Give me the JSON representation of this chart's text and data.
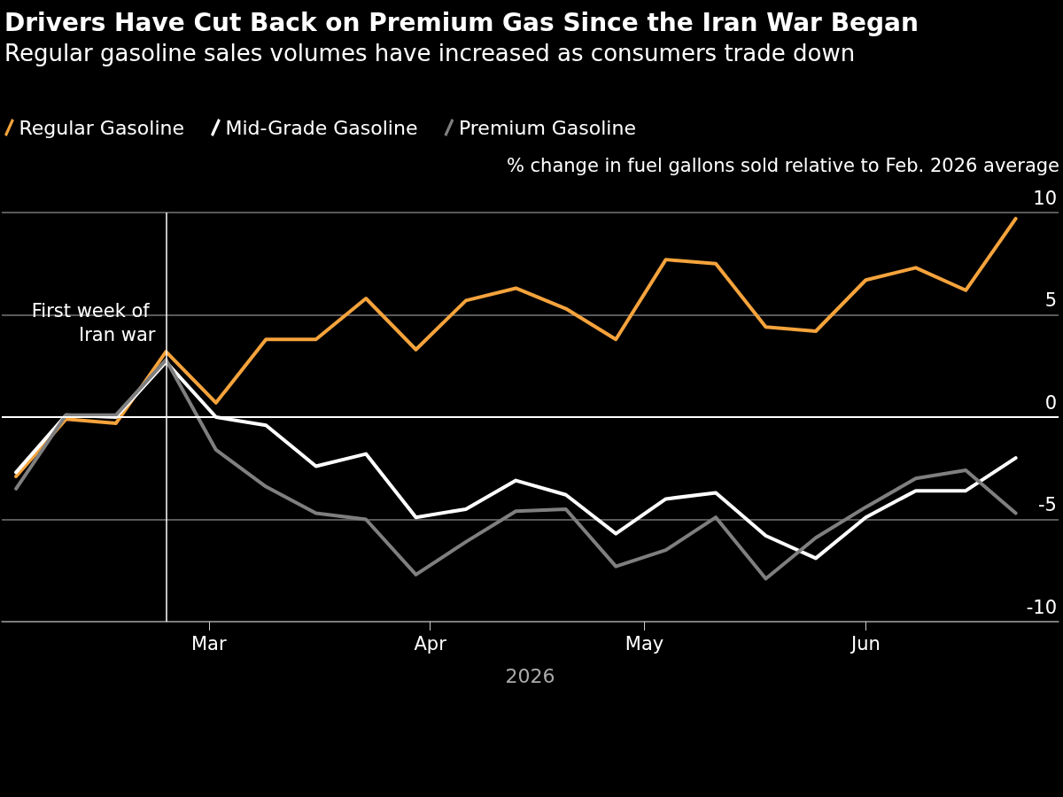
{
  "chart_data": {
    "type": "line",
    "title": "Drivers Have Cut Back on Premium Gas Since the Iran War Began",
    "subtitle": "Regular gasoline sales volumes have increased as consumers trade down",
    "ylabel": "% change in fuel gallons sold relative to Feb. 2026 average",
    "xlabel": "2026",
    "x": [
      "2026-02-02",
      "2026-02-09",
      "2026-02-16",
      "2026-02-23",
      "2026-03-02",
      "2026-03-09",
      "2026-03-16",
      "2026-03-23",
      "2026-03-30",
      "2026-04-06",
      "2026-04-13",
      "2026-04-20",
      "2026-04-27",
      "2026-05-04",
      "2026-05-11",
      "2026-05-18",
      "2026-05-25",
      "2026-06-01",
      "2026-06-08",
      "2026-06-15",
      "2026-06-22"
    ],
    "series": [
      {
        "name": "Regular Gasoline",
        "color": "#f5a33c",
        "values": [
          -2.9,
          -0.1,
          -0.3,
          3.2,
          0.7,
          3.8,
          3.8,
          5.8,
          3.3,
          5.7,
          6.3,
          5.3,
          3.8,
          7.7,
          7.5,
          4.4,
          4.2,
          6.7,
          7.3,
          6.2,
          9.7
        ]
      },
      {
        "name": "Mid-Grade Gasoline",
        "color": "#ffffff",
        "values": [
          -2.7,
          0.1,
          0.0,
          2.7,
          0.0,
          -0.4,
          -2.4,
          -1.8,
          -4.9,
          -4.5,
          -3.1,
          -3.8,
          -5.7,
          -4.0,
          -3.7,
          -5.8,
          -6.9,
          -4.9,
          -3.6,
          -3.6,
          -2.0
        ]
      },
      {
        "name": "Premium Gasoline",
        "color": "#7f7f7f",
        "values": [
          -3.5,
          0.1,
          0.1,
          2.8,
          -1.6,
          -3.4,
          -4.7,
          -5.0,
          -7.7,
          -6.1,
          -4.6,
          -4.5,
          -7.3,
          -6.5,
          -4.9,
          -7.9,
          -5.9,
          -4.4,
          -3.0,
          -2.6,
          -4.7
        ]
      }
    ],
    "xlim": [
      "2026-01-31",
      "2026-06-28"
    ],
    "xticks": [
      {
        "value": "2026-03-01",
        "label": "Mar"
      },
      {
        "value": "2026-04-01",
        "label": "Apr"
      },
      {
        "value": "2026-05-01",
        "label": "May"
      },
      {
        "value": "2026-06-01",
        "label": "Jun"
      }
    ],
    "ylim": [
      -10,
      10
    ],
    "yticks": [
      -10,
      -5,
      0,
      5,
      10
    ],
    "ref_lines": [
      {
        "axis": "x",
        "value": "2026-02-23",
        "label": "First week of Iran war",
        "color": "#ffffff"
      },
      {
        "axis": "y",
        "value": 0,
        "label": null,
        "color": "#ffffff"
      }
    ],
    "grid": "y",
    "legend": "top left",
    "marker": "none",
    "line_style": "solid"
  }
}
